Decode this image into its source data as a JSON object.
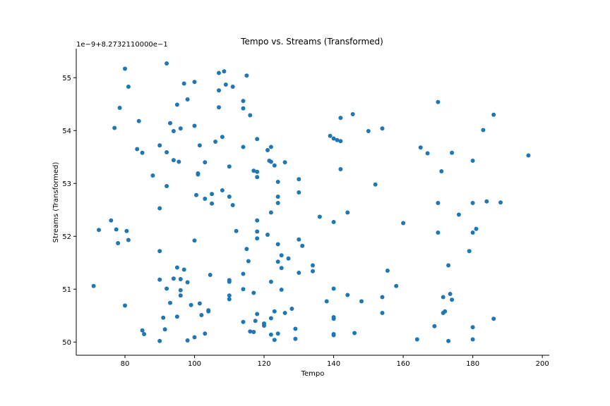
{
  "chart_data": {
    "type": "scatter",
    "title": "Tempo vs. Streams (Transformed)",
    "xlabel": "Tempo",
    "ylabel": "Streams (Transformed)",
    "y_offset_label": "1e−9+8.2732110000e−1",
    "xlim": [
      66,
      202
    ],
    "ylim": [
      49.75,
      55.55
    ],
    "xticks": [
      80,
      100,
      120,
      140,
      160,
      180,
      200
    ],
    "yticks": [
      50,
      51,
      52,
      53,
      54,
      55
    ],
    "grid": false,
    "color": "#1f77b4",
    "points": [
      [
        71,
        51.06
      ],
      [
        72.5,
        52.12
      ],
      [
        76,
        52.3
      ],
      [
        77,
        54.05
      ],
      [
        77.5,
        52.13
      ],
      [
        78,
        51.87
      ],
      [
        78.5,
        54.43
      ],
      [
        80,
        55.17
      ],
      [
        80,
        50.69
      ],
      [
        80.5,
        52.1
      ],
      [
        81,
        54.83
      ],
      [
        81,
        51.93
      ],
      [
        83.5,
        53.65
      ],
      [
        84,
        54.18
      ],
      [
        85,
        53.58
      ],
      [
        85,
        50.22
      ],
      [
        85.5,
        50.15
      ],
      [
        88,
        53.15
      ],
      [
        90,
        53.72
      ],
      [
        90,
        52.53
      ],
      [
        90,
        51.72
      ],
      [
        90,
        51.18
      ],
      [
        90,
        50.02
      ],
      [
        91,
        50.46
      ],
      [
        91.5,
        50.24
      ],
      [
        92,
        55.27
      ],
      [
        92,
        53.59
      ],
      [
        92,
        52.95
      ],
      [
        92,
        51.01
      ],
      [
        93,
        54.14
      ],
      [
        93,
        50.74
      ],
      [
        94,
        53.99
      ],
      [
        94,
        53.44
      ],
      [
        94,
        51.2
      ],
      [
        95,
        54.49
      ],
      [
        95,
        51.41
      ],
      [
        95,
        50.48
      ],
      [
        95.5,
        53.41
      ],
      [
        96,
        54.04
      ],
      [
        96,
        51.19
      ],
      [
        96,
        50.98
      ],
      [
        96,
        50.88
      ],
      [
        97,
        54.89
      ],
      [
        97,
        51.37
      ],
      [
        98,
        54.59
      ],
      [
        98,
        51.13
      ],
      [
        98,
        50.03
      ],
      [
        99,
        50.7
      ],
      [
        100,
        54.92
      ],
      [
        100,
        54.09
      ],
      [
        100,
        51.92
      ],
      [
        100,
        50.09
      ],
      [
        101,
        53.19
      ],
      [
        101,
        53.17
      ],
      [
        100.5,
        52.78
      ],
      [
        101.5,
        53.72
      ],
      [
        101.5,
        50.73
      ],
      [
        102,
        50.51
      ],
      [
        103,
        53.4
      ],
      [
        103,
        52.71
      ],
      [
        103,
        50.16
      ],
      [
        104,
        50.6
      ],
      [
        104,
        50.58
      ],
      [
        104.5,
        51.27
      ],
      [
        105,
        52.8
      ],
      [
        105,
        52.62
      ],
      [
        106,
        53.79
      ],
      [
        107,
        55.09
      ],
      [
        107,
        54.76
      ],
      [
        107,
        54.44
      ],
      [
        108,
        53.88
      ],
      [
        108,
        52.87
      ],
      [
        108.5,
        55.12
      ],
      [
        109,
        54.87
      ],
      [
        110,
        53.32
      ],
      [
        110,
        52.75
      ],
      [
        110,
        51.17
      ],
      [
        110,
        51.14
      ],
      [
        110,
        50.88
      ],
      [
        110,
        50.81
      ],
      [
        111,
        54.83
      ],
      [
        111,
        52.59
      ],
      [
        112,
        52.1
      ],
      [
        114,
        54.56
      ],
      [
        114,
        54.42
      ],
      [
        114,
        53.69
      ],
      [
        114,
        51.29
      ],
      [
        114,
        51.0
      ],
      [
        114,
        50.38
      ],
      [
        115,
        55.04
      ],
      [
        115,
        51.76
      ],
      [
        115.5,
        51.53
      ],
      [
        116,
        54.29
      ],
      [
        116,
        50.2
      ],
      [
        117,
        53.24
      ],
      [
        117,
        50.93
      ],
      [
        117,
        50.19
      ],
      [
        117.5,
        50.4
      ],
      [
        118,
        53.84
      ],
      [
        118,
        53.22
      ],
      [
        118,
        53.12
      ],
      [
        118,
        52.3
      ],
      [
        118,
        52.09
      ],
      [
        118,
        51.96
      ],
      [
        118,
        50.53
      ],
      [
        120,
        50.35
      ],
      [
        120,
        50.31
      ],
      [
        121,
        53.63
      ],
      [
        121,
        52.03
      ],
      [
        121.5,
        53.43
      ],
      [
        122,
        53.69
      ],
      [
        122,
        53.41
      ],
      [
        122,
        52.45
      ],
      [
        122,
        51.14
      ],
      [
        122,
        50.45
      ],
      [
        122,
        50.14
      ],
      [
        123,
        53.34
      ],
      [
        123,
        50.58
      ],
      [
        123,
        50.04
      ],
      [
        124,
        53.03
      ],
      [
        124,
        52.75
      ],
      [
        124,
        52.63
      ],
      [
        124,
        51.85
      ],
      [
        124,
        51.52
      ],
      [
        124,
        50.16
      ],
      [
        125,
        51.64
      ],
      [
        125,
        51.4
      ],
      [
        125,
        50.99
      ],
      [
        126,
        53.4
      ],
      [
        126,
        50.55
      ],
      [
        127,
        51.58
      ],
      [
        128,
        50.63
      ],
      [
        129,
        50.25
      ],
      [
        129,
        50.06
      ],
      [
        130,
        53.08
      ],
      [
        130,
        52.83
      ],
      [
        130,
        51.94
      ],
      [
        130,
        51.31
      ],
      [
        131,
        51.82
      ],
      [
        134,
        51.45
      ],
      [
        134,
        51.34
      ],
      [
        136,
        52.37
      ],
      [
        138,
        50.77
      ],
      [
        139,
        53.9
      ],
      [
        140,
        53.85
      ],
      [
        140,
        52.27
      ],
      [
        140,
        51.01
      ],
      [
        140,
        50.47
      ],
      [
        140,
        50.44
      ],
      [
        140,
        50.15
      ],
      [
        140,
        50.13
      ],
      [
        141,
        53.82
      ],
      [
        142,
        54.24
      ],
      [
        142,
        53.8
      ],
      [
        142,
        53.27
      ],
      [
        144,
        52.45
      ],
      [
        144,
        50.89
      ],
      [
        145.5,
        54.31
      ],
      [
        146,
        50.17
      ],
      [
        148,
        50.77
      ],
      [
        150,
        53.99
      ],
      [
        152,
        52.98
      ],
      [
        154,
        54.04
      ],
      [
        154,
        50.85
      ],
      [
        154,
        50.55
      ],
      [
        155.5,
        51.35
      ],
      [
        158,
        51.06
      ],
      [
        160,
        52.25
      ],
      [
        164,
        50.05
      ],
      [
        165,
        53.68
      ],
      [
        167,
        53.57
      ],
      [
        169,
        50.3
      ],
      [
        170,
        54.54
      ],
      [
        170,
        52.63
      ],
      [
        170,
        52.07
      ],
      [
        171,
        53.23
      ],
      [
        171.5,
        50.85
      ],
      [
        171.5,
        50.55
      ],
      [
        172,
        50.58
      ],
      [
        173,
        51.45
      ],
      [
        173,
        50.02
      ],
      [
        173.5,
        50.91
      ],
      [
        174,
        53.58
      ],
      [
        174,
        50.8
      ],
      [
        176,
        52.41
      ],
      [
        179,
        51.72
      ],
      [
        180,
        53.43
      ],
      [
        180,
        52.63
      ],
      [
        180,
        52.07
      ],
      [
        180,
        50.28
      ],
      [
        180,
        50.05
      ],
      [
        181,
        52.14
      ],
      [
        183,
        54.01
      ],
      [
        184,
        52.66
      ],
      [
        186,
        54.3
      ],
      [
        186,
        50.44
      ],
      [
        188,
        52.64
      ],
      [
        196,
        53.53
      ]
    ]
  }
}
